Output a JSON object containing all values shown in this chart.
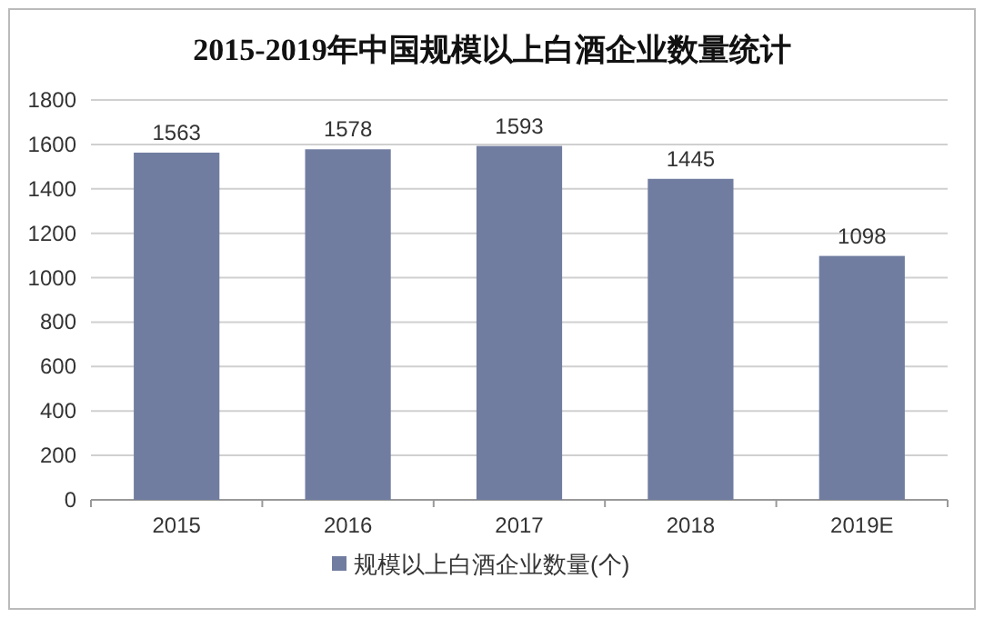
{
  "chart_data": {
    "type": "bar",
    "title": "2015-2019年中国规模以上白酒企业数量统计",
    "categories": [
      "2015",
      "2016",
      "2017",
      "2018",
      "2019E"
    ],
    "series": [
      {
        "name": "规模以上白酒企业数量(个)",
        "color": "#717da0",
        "values": [
          1563,
          1578,
          1593,
          1445,
          1098
        ]
      }
    ],
    "ylim": [
      0,
      1800
    ],
    "yticks": [
      0,
      200,
      400,
      600,
      800,
      1000,
      1200,
      1400,
      1600,
      1800
    ],
    "grid": "y",
    "data_labels": true,
    "legend": "bottom"
  }
}
